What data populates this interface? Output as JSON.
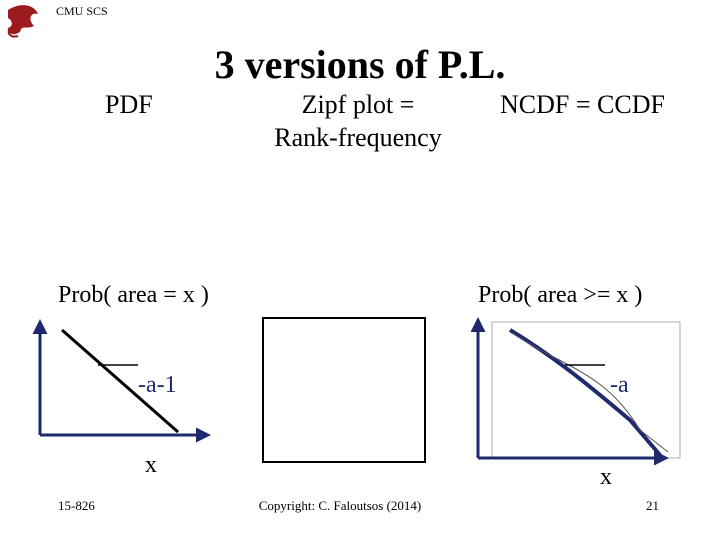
{
  "header": {
    "brand": "CMU SCS",
    "title": "3 versions of P.L."
  },
  "columns": {
    "pdf": "PDF",
    "zipf": [
      "Zipf plot =",
      "Rank-frequency"
    ],
    "ccdf": "NCDF = CCDF"
  },
  "pdf_panel": {
    "label": "Prob( area = x )",
    "slope": "-a-1",
    "x_axis": "x"
  },
  "ccdf_panel": {
    "label": "Prob( area >= x )",
    "slope": "-a",
    "x_axis": "x"
  },
  "footer": {
    "course": "15-826",
    "copyright": "Copyright: C. Faloutsos (2014)",
    "page": "21"
  }
}
